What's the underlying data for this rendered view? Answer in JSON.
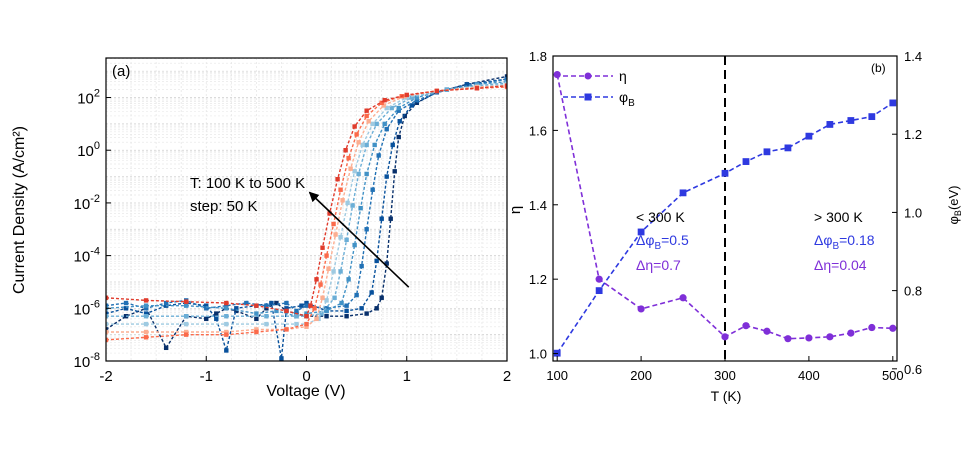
{
  "chart_data": [
    {
      "type": "line",
      "panel_label": "(a)",
      "xlabel": "Voltage (V)",
      "ylabel": "Current Density (A/cm²)",
      "xlim": [
        -2,
        2
      ],
      "ylim_log10": [
        -8,
        3.5
      ],
      "log_y": true,
      "x_ticks": [
        "-2",
        "-1",
        "0",
        "1",
        "2"
      ],
      "y_ticks": [
        {
          "base": "10",
          "exp": "2",
          "log": 2
        },
        {
          "base": "10",
          "exp": "0",
          "log": 0
        },
        {
          "base": "10",
          "exp": "-2",
          "log": -2
        },
        {
          "base": "10",
          "exp": "-4",
          "log": -4
        },
        {
          "base": "10",
          "exp": "-6",
          "log": -6
        },
        {
          "base": "10",
          "exp": "-8",
          "log": -8
        }
      ],
      "grid": true,
      "annotation": {
        "line1": "T: 100 K to 500 K",
        "line2": "step: 50 K"
      },
      "arrow": {
        "from": [
          1.02,
          -5.2
        ],
        "to": [
          0.03,
          -1.6
        ]
      },
      "series": [
        {
          "color": "#08306b",
          "points": [
            [
              -2,
              -6.8
            ],
            [
              -1.8,
              -6.3
            ],
            [
              -1.6,
              -6.0
            ],
            [
              -1.4,
              -7.5
            ],
            [
              -1.2,
              -6.3
            ],
            [
              -1.0,
              -6.4
            ],
            [
              -0.9,
              -6.2
            ],
            [
              -0.8,
              -6.0
            ],
            [
              -0.7,
              -6.1
            ],
            [
              -0.5,
              -6.4
            ],
            [
              -0.4,
              -6.0
            ],
            [
              -0.3,
              -5.8
            ],
            [
              -0.2,
              -6.1
            ],
            [
              -0.1,
              -6.2
            ],
            [
              0.0,
              -6.3
            ],
            [
              0.2,
              -6.3
            ],
            [
              0.4,
              -6.3
            ],
            [
              0.6,
              -6.2
            ],
            [
              0.7,
              -6.0
            ],
            [
              0.75,
              -5.6
            ],
            [
              0.8,
              -4.3
            ],
            [
              0.84,
              -2.6
            ],
            [
              0.88,
              -0.8
            ],
            [
              0.92,
              0.5
            ],
            [
              0.98,
              1.3
            ],
            [
              1.1,
              1.8
            ],
            [
              1.3,
              2.2
            ],
            [
              1.6,
              2.5
            ],
            [
              2.0,
              2.8
            ]
          ]
        },
        {
          "color": "#08519c",
          "points": [
            [
              -2,
              -6.2
            ],
            [
              -1.8,
              -6.0
            ],
            [
              -1.6,
              -6.2
            ],
            [
              -1.4,
              -5.9
            ],
            [
              -1.2,
              -5.8
            ],
            [
              -1.0,
              -5.9
            ],
            [
              -0.9,
              -6.4
            ],
            [
              -0.8,
              -7.6
            ],
            [
              -0.7,
              -6.0
            ],
            [
              -0.5,
              -5.9
            ],
            [
              -0.35,
              -5.8
            ],
            [
              -0.25,
              -7.9
            ],
            [
              -0.2,
              -6.0
            ],
            [
              -0.05,
              -5.9
            ],
            [
              0.0,
              -5.8
            ],
            [
              0.2,
              -6.1
            ],
            [
              0.4,
              -6.1
            ],
            [
              0.55,
              -6.0
            ],
            [
              0.65,
              -5.4
            ],
            [
              0.7,
              -4.2
            ],
            [
              0.75,
              -2.6
            ],
            [
              0.8,
              -1.0
            ],
            [
              0.86,
              0.2
            ],
            [
              0.93,
              1.1
            ],
            [
              1.05,
              1.7
            ],
            [
              1.3,
              2.2
            ],
            [
              1.6,
              2.5
            ],
            [
              2.0,
              2.7
            ]
          ]
        },
        {
          "color": "#2171b5",
          "points": [
            [
              -2,
              -5.9
            ],
            [
              -1.8,
              -5.8
            ],
            [
              -1.6,
              -6.0
            ],
            [
              -1.4,
              -5.8
            ],
            [
              -1.2,
              -5.7
            ],
            [
              -1.0,
              -6.0
            ],
            [
              -0.8,
              -5.9
            ],
            [
              -0.6,
              -5.8
            ],
            [
              -0.4,
              -5.9
            ],
            [
              -0.2,
              -5.8
            ],
            [
              -0.1,
              -6.1
            ],
            [
              0.0,
              -5.9
            ],
            [
              0.2,
              -6.0
            ],
            [
              0.4,
              -5.9
            ],
            [
              0.5,
              -5.5
            ],
            [
              0.55,
              -4.4
            ],
            [
              0.6,
              -3.0
            ],
            [
              0.66,
              -1.5
            ],
            [
              0.72,
              -0.2
            ],
            [
              0.8,
              0.8
            ],
            [
              0.92,
              1.5
            ],
            [
              1.1,
              1.9
            ],
            [
              1.4,
              2.3
            ],
            [
              1.7,
              2.5
            ],
            [
              2.0,
              2.7
            ]
          ]
        },
        {
          "color": "#4292c6",
          "points": [
            [
              -2,
              -6.0
            ],
            [
              -1.6,
              -5.9
            ],
            [
              -1.2,
              -5.9
            ],
            [
              -0.8,
              -6.0
            ],
            [
              -0.5,
              -6.2
            ],
            [
              -0.3,
              -6.1
            ],
            [
              -0.1,
              -6.3
            ],
            [
              0.0,
              -6.2
            ],
            [
              0.2,
              -6.1
            ],
            [
              0.35,
              -5.8
            ],
            [
              0.42,
              -4.9
            ],
            [
              0.48,
              -3.6
            ],
            [
              0.54,
              -2.2
            ],
            [
              0.6,
              -0.9
            ],
            [
              0.68,
              0.2
            ],
            [
              0.78,
              1.0
            ],
            [
              0.92,
              1.6
            ],
            [
              1.1,
              2.0
            ],
            [
              1.4,
              2.3
            ],
            [
              1.7,
              2.5
            ],
            [
              2.0,
              2.6
            ]
          ]
        },
        {
          "color": "#6baed6",
          "points": [
            [
              -2,
              -6.3
            ],
            [
              -1.6,
              -6.3
            ],
            [
              -1.2,
              -6.3
            ],
            [
              -0.8,
              -6.3
            ],
            [
              -0.4,
              -6.3
            ],
            [
              -0.1,
              -6.3
            ],
            [
              0.0,
              -6.3
            ],
            [
              0.15,
              -6.2
            ],
            [
              0.28,
              -5.6
            ],
            [
              0.34,
              -4.6
            ],
            [
              0.4,
              -3.4
            ],
            [
              0.46,
              -2.1
            ],
            [
              0.52,
              -0.9
            ],
            [
              0.6,
              0.2
            ],
            [
              0.7,
              1.0
            ],
            [
              0.85,
              1.6
            ],
            [
              1.05,
              2.0
            ],
            [
              1.4,
              2.3
            ],
            [
              1.7,
              2.45
            ],
            [
              2.0,
              2.55
            ]
          ]
        },
        {
          "color": "#9ecae1",
          "points": [
            [
              -2,
              -6.6
            ],
            [
              -1.6,
              -6.6
            ],
            [
              -1.2,
              -6.6
            ],
            [
              -0.8,
              -6.6
            ],
            [
              -0.4,
              -6.6
            ],
            [
              -0.1,
              -6.6
            ],
            [
              0.0,
              -6.6
            ],
            [
              0.12,
              -6.4
            ],
            [
              0.2,
              -5.7
            ],
            [
              0.27,
              -4.6
            ],
            [
              0.34,
              -3.3
            ],
            [
              0.41,
              -2.0
            ],
            [
              0.48,
              -0.8
            ],
            [
              0.56,
              0.2
            ],
            [
              0.66,
              1.0
            ],
            [
              0.8,
              1.6
            ],
            [
              1.0,
              2.0
            ],
            [
              1.3,
              2.25
            ],
            [
              1.7,
              2.4
            ],
            [
              2.0,
              2.5
            ]
          ]
        },
        {
          "color": "#fcae91",
          "points": [
            [
              -2,
              -6.9
            ],
            [
              -1.6,
              -6.9
            ],
            [
              -1.2,
              -6.9
            ],
            [
              -0.8,
              -6.9
            ],
            [
              -0.5,
              -6.8
            ],
            [
              -0.2,
              -6.8
            ],
            [
              0.0,
              -6.7
            ],
            [
              0.1,
              -6.4
            ],
            [
              0.16,
              -5.6
            ],
            [
              0.22,
              -4.5
            ],
            [
              0.29,
              -3.2
            ],
            [
              0.36,
              -1.9
            ],
            [
              0.44,
              -0.7
            ],
            [
              0.52,
              0.3
            ],
            [
              0.62,
              1.1
            ],
            [
              0.77,
              1.7
            ],
            [
              0.98,
              2.05
            ],
            [
              1.3,
              2.25
            ],
            [
              1.7,
              2.4
            ],
            [
              2.0,
              2.45
            ]
          ]
        },
        {
          "color": "#fb6a4a",
          "points": [
            [
              -2,
              -7.2
            ],
            [
              -1.6,
              -7.1
            ],
            [
              -1.2,
              -7.0
            ],
            [
              -0.8,
              -7.0
            ],
            [
              -0.5,
              -6.9
            ],
            [
              -0.2,
              -6.8
            ],
            [
              0.0,
              -6.6
            ],
            [
              0.08,
              -6.0
            ],
            [
              0.14,
              -5.1
            ],
            [
              0.2,
              -4.0
            ],
            [
              0.27,
              -2.8
            ],
            [
              0.34,
              -1.5
            ],
            [
              0.42,
              -0.3
            ],
            [
              0.5,
              0.6
            ],
            [
              0.6,
              1.3
            ],
            [
              0.75,
              1.8
            ],
            [
              0.95,
              2.05
            ],
            [
              1.3,
              2.25
            ],
            [
              1.7,
              2.35
            ],
            [
              2.0,
              2.4
            ]
          ]
        },
        {
          "color": "#e03b2c",
          "points": [
            [
              -2,
              -5.6
            ],
            [
              -1.6,
              -5.7
            ],
            [
              -1.2,
              -5.75
            ],
            [
              -0.8,
              -5.8
            ],
            [
              -0.5,
              -5.9
            ],
            [
              -0.2,
              -6.1
            ],
            [
              0.0,
              -6.3
            ],
            [
              0.04,
              -5.9
            ],
            [
              0.1,
              -4.9
            ],
            [
              0.16,
              -3.7
            ],
            [
              0.23,
              -2.4
            ],
            [
              0.31,
              -1.1
            ],
            [
              0.39,
              0.0
            ],
            [
              0.48,
              0.9
            ],
            [
              0.6,
              1.5
            ],
            [
              0.78,
              1.9
            ],
            [
              1.0,
              2.1
            ],
            [
              1.3,
              2.25
            ],
            [
              1.7,
              2.35
            ],
            [
              2.0,
              2.45
            ]
          ]
        }
      ]
    },
    {
      "type": "line",
      "panel_label": "(b)",
      "xlabel": "T (K)",
      "ylabel_left": "η",
      "ylabel_right": {
        "sym": "φ",
        "sub": "B",
        "unit": "(eV)"
      },
      "xlim": [
        95,
        505
      ],
      "ylim_left": [
        0.98,
        1.8
      ],
      "ylim_right": [
        0.62,
        1.4
      ],
      "x_ticks": [
        "100",
        "200",
        "300",
        "400",
        "500"
      ],
      "y_ticks_left": [
        "1.0",
        "1.2",
        "1.4",
        "1.6",
        "1.8"
      ],
      "y_ticks_right": [
        "0.6",
        "0.8",
        "1.0",
        "1.2",
        "1.4"
      ],
      "legend": {
        "placement": "top-left",
        "eta": "η",
        "phi_sym": "φ",
        "phi_sub": "B"
      },
      "vline_x": 300,
      "annotations": {
        "left_title": "< 300 K",
        "left_dphi_pre": "Δφ",
        "left_dphi_sub": "B",
        "left_dphi_val": "=0.5",
        "left_deta": "Δη=0.7",
        "right_title": "> 300 K",
        "right_dphi_pre": "Δφ",
        "right_dphi_sub": "B",
        "right_dphi_val": "=0.18",
        "right_deta": "Δη=0.04"
      },
      "series": [
        {
          "name": "η",
          "axis": "left",
          "color": "#7f2fd8",
          "marker": "circle",
          "x": [
            100,
            150,
            200,
            250,
            300,
            325,
            350,
            375,
            400,
            425,
            450,
            475,
            500
          ],
          "y": [
            1.75,
            1.2,
            1.12,
            1.15,
            1.045,
            1.075,
            1.06,
            1.04,
            1.042,
            1.045,
            1.055,
            1.07,
            1.068
          ]
        },
        {
          "name": "φB",
          "axis": "right",
          "color": "#2e39e0",
          "marker": "square",
          "x": [
            100,
            150,
            200,
            250,
            300,
            325,
            350,
            375,
            400,
            425,
            450,
            475,
            500
          ],
          "y": [
            0.64,
            0.8,
            0.95,
            1.05,
            1.1,
            1.13,
            1.155,
            1.165,
            1.195,
            1.225,
            1.235,
            1.245,
            1.28
          ]
        }
      ]
    }
  ]
}
